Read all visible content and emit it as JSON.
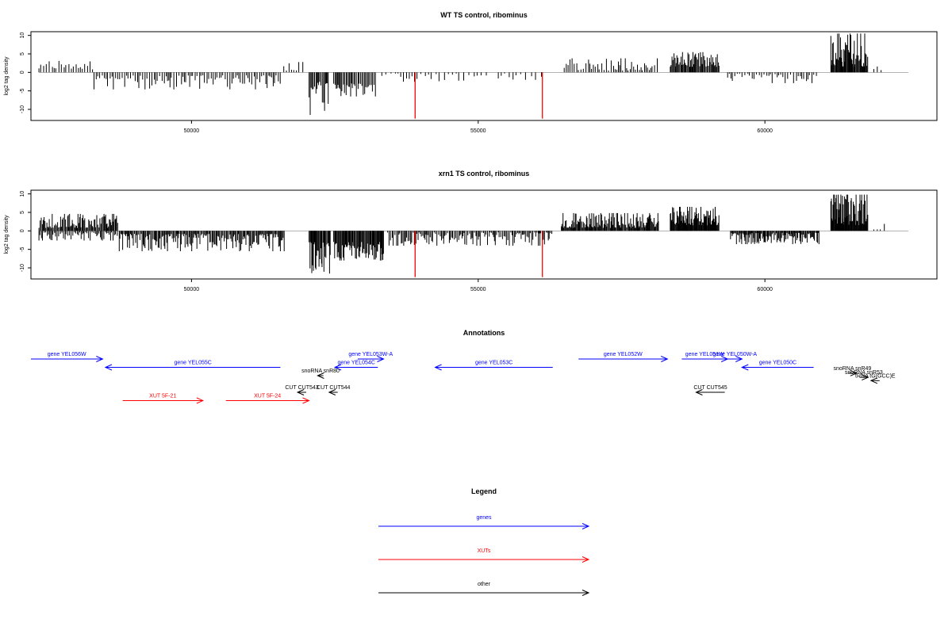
{
  "chart_data": [
    {
      "type": "bar",
      "title": "WT TS control, ribominus",
      "ylabel": "log2 tag density",
      "xlim": [
        47200,
        63000
      ],
      "ylim": [
        -13,
        11
      ],
      "yticks": [
        -10,
        -5,
        0,
        5,
        10
      ],
      "xticks": [
        50000,
        55000,
        60000
      ],
      "segments": [
        {
          "from": 47340,
          "to": 48290,
          "step": 42,
          "sign": 1,
          "lo": 0.8,
          "hi": 3.1
        },
        {
          "from": 48300,
          "to": 51560,
          "step": 34,
          "sign": -1,
          "lo": 0.8,
          "hi": 4.6
        },
        {
          "from": 51610,
          "to": 51980,
          "step": 55,
          "sign": 1,
          "lo": 0.5,
          "hi": 2.8
        },
        {
          "from": 52050,
          "to": 52400,
          "step": 18,
          "sign": -1,
          "lo": 2.5,
          "hi": 11.5
        },
        {
          "from": 52480,
          "to": 53220,
          "step": 22,
          "sign": -1,
          "lo": 3.0,
          "hi": 6.5
        },
        {
          "from": 53320,
          "to": 55150,
          "step": 70,
          "sign": -1,
          "lo": 0.3,
          "hi": 2.8
        },
        {
          "from": 55350,
          "to": 56200,
          "step": 80,
          "sign": -1,
          "lo": 0.3,
          "hi": 2.0
        },
        {
          "from": 56500,
          "to": 58150,
          "step": 34,
          "sign": 1,
          "lo": 0.5,
          "hi": 3.8
        },
        {
          "from": 58350,
          "to": 59200,
          "step": 15,
          "sign": 1,
          "lo": 1.5,
          "hi": 5.5
        },
        {
          "from": 59350,
          "to": 60900,
          "step": 38,
          "sign": -1,
          "lo": 0.4,
          "hi": 2.9
        },
        {
          "from": 61150,
          "to": 61800,
          "step": 12,
          "sign": 1,
          "lo": 1.5,
          "hi": 10.5
        },
        {
          "from": 61900,
          "to": 62100,
          "step": 55,
          "sign": 1,
          "lo": 0.4,
          "hi": 1.6
        }
      ],
      "red_lines": [
        {
          "x": 53900,
          "y": -12.5
        },
        {
          "x": 56120,
          "y": -12.5
        }
      ]
    },
    {
      "type": "bar",
      "title": "xrn1 TS control, ribominus",
      "ylabel": "log2 tag density",
      "xlim": [
        47200,
        63000
      ],
      "ylim": [
        -13,
        11
      ],
      "yticks": [
        -10,
        -5,
        0,
        5,
        10
      ],
      "xticks": [
        50000,
        55000,
        60000
      ],
      "segments": [
        {
          "from": 47340,
          "to": 48720,
          "step": 16,
          "sign": 1,
          "lo": 0.8,
          "hi": 4.6
        },
        {
          "from": 47340,
          "to": 48720,
          "step": 23,
          "sign": -1,
          "lo": 0.4,
          "hi": 2.6
        },
        {
          "from": 48740,
          "to": 51620,
          "step": 17,
          "sign": -1,
          "lo": 0.8,
          "hi": 5.5
        },
        {
          "from": 52050,
          "to": 52420,
          "step": 14,
          "sign": -1,
          "lo": 3.0,
          "hi": 12.5
        },
        {
          "from": 52480,
          "to": 53350,
          "step": 13,
          "sign": -1,
          "lo": 3.0,
          "hi": 8.0
        },
        {
          "from": 53420,
          "to": 56300,
          "step": 22,
          "sign": -1,
          "lo": 0.4,
          "hi": 4.0
        },
        {
          "from": 56450,
          "to": 58150,
          "step": 13,
          "sign": 1,
          "lo": 0.8,
          "hi": 4.8
        },
        {
          "from": 58350,
          "to": 59200,
          "step": 10,
          "sign": 1,
          "lo": 1.5,
          "hi": 6.5
        },
        {
          "from": 59400,
          "to": 60950,
          "step": 14,
          "sign": -1,
          "lo": 0.5,
          "hi": 3.6
        },
        {
          "from": 61150,
          "to": 61800,
          "step": 9,
          "sign": 1,
          "lo": 1.5,
          "hi": 9.8
        },
        {
          "from": 61900,
          "to": 62100,
          "step": 55,
          "sign": 1,
          "lo": 0.4,
          "hi": 2.4
        }
      ],
      "red_lines": [
        {
          "x": 53900,
          "y": -12.5
        },
        {
          "x": 56120,
          "y": -12.5
        }
      ]
    }
  ],
  "annotations": {
    "title": "Annotations",
    "features": [
      {
        "label": "gene YEL056W",
        "class": "genes",
        "start": 47200,
        "end": 48450,
        "strand": "+",
        "row": 0
      },
      {
        "label": "gene YEL055C",
        "class": "genes",
        "start": 48500,
        "end": 51550,
        "strand": "-",
        "row": 1
      },
      {
        "label": "gene YEL053W-A",
        "class": "genes",
        "start": 52900,
        "end": 53350,
        "strand": "+",
        "row": 0
      },
      {
        "label": "gene YEL054C",
        "class": "genes",
        "start": 52500,
        "end": 53250,
        "strand": "-",
        "row": 1
      },
      {
        "label": "gene YEL053C",
        "class": "genes",
        "start": 54250,
        "end": 56300,
        "strand": "-",
        "row": 1
      },
      {
        "label": "gene YEL052W",
        "class": "genes",
        "start": 56750,
        "end": 58300,
        "strand": "+",
        "row": 0
      },
      {
        "label": "gene YEL051W",
        "class": "genes",
        "start": 58550,
        "end": 59350,
        "strand": "+",
        "row": 0
      },
      {
        "label": "gene YEL050W-A",
        "class": "genes",
        "start": 59350,
        "end": 59600,
        "strand": "+",
        "row": 0
      },
      {
        "label": "gene YEL050C",
        "class": "genes",
        "start": 59600,
        "end": 60850,
        "strand": "-",
        "row": 1
      },
      {
        "label": "snoRNA snR80",
        "class": "other",
        "start": 52200,
        "end": 52300,
        "strand": "-",
        "row": 2
      },
      {
        "label": "snoRNA snR49",
        "class": "other",
        "start": 61450,
        "end": 61600,
        "strand": "+",
        "row": 1.7
      },
      {
        "label": "snoRNA snR53",
        "class": "other",
        "start": 61650,
        "end": 61800,
        "strand": "+",
        "row": 2.2
      },
      {
        "label": "tRNA tG(GCC)E",
        "class": "other",
        "start": 61850,
        "end": 62000,
        "strand": "-",
        "row": 2.6
      },
      {
        "label": "CUT CUT543",
        "class": "other",
        "start": 51850,
        "end": 52000,
        "strand": "-",
        "row": 4
      },
      {
        "label": "CUT CUT544",
        "class": "other",
        "start": 52400,
        "end": 52550,
        "strand": "-",
        "row": 4
      },
      {
        "label": "CUT CUT545",
        "class": "other",
        "start": 58800,
        "end": 59300,
        "strand": "-",
        "row": 4
      },
      {
        "label": "XUT 5F-21",
        "class": "XUTs",
        "start": 48800,
        "end": 50200,
        "strand": "+",
        "row": 5
      },
      {
        "label": "XUT 5F-24",
        "class": "XUTs",
        "start": 50600,
        "end": 52050,
        "strand": "+",
        "row": 5
      }
    ]
  },
  "legend": {
    "title": "Legend",
    "items": [
      {
        "label": "genes",
        "color": "#0000ff"
      },
      {
        "label": "XUTs",
        "color": "#ff0000"
      },
      {
        "label": "other",
        "color": "#000000"
      }
    ]
  },
  "colors": {
    "genes": "#0000ff",
    "XUTs": "#ff0000",
    "other": "#000000",
    "bars": "#000000",
    "red_lines": "#ff0000"
  }
}
